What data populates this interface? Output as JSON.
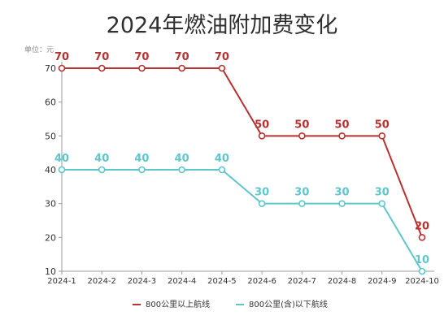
{
  "chart_data": {
    "type": "line",
    "title": "2024年燃油附加费变化",
    "unit_label": "单位：元",
    "categories": [
      "2024-1",
      "2024-2",
      "2024-3",
      "2024-4",
      "2024-5",
      "2024-6",
      "2024-7",
      "2024-8",
      "2024-9",
      "2024-10"
    ],
    "yticks": [
      10,
      20,
      30,
      40,
      50,
      60,
      70
    ],
    "ylim": [
      10,
      70
    ],
    "grid": false,
    "legend_position": "bottom",
    "series": [
      {
        "name": "800公里以上航线",
        "color": "#b8312f",
        "values": [
          70,
          70,
          70,
          70,
          70,
          50,
          50,
          50,
          50,
          20
        ]
      },
      {
        "name": "800公里(含)以下航线",
        "color": "#5ec6cc",
        "values": [
          40,
          40,
          40,
          40,
          40,
          30,
          30,
          30,
          30,
          10
        ]
      }
    ]
  }
}
